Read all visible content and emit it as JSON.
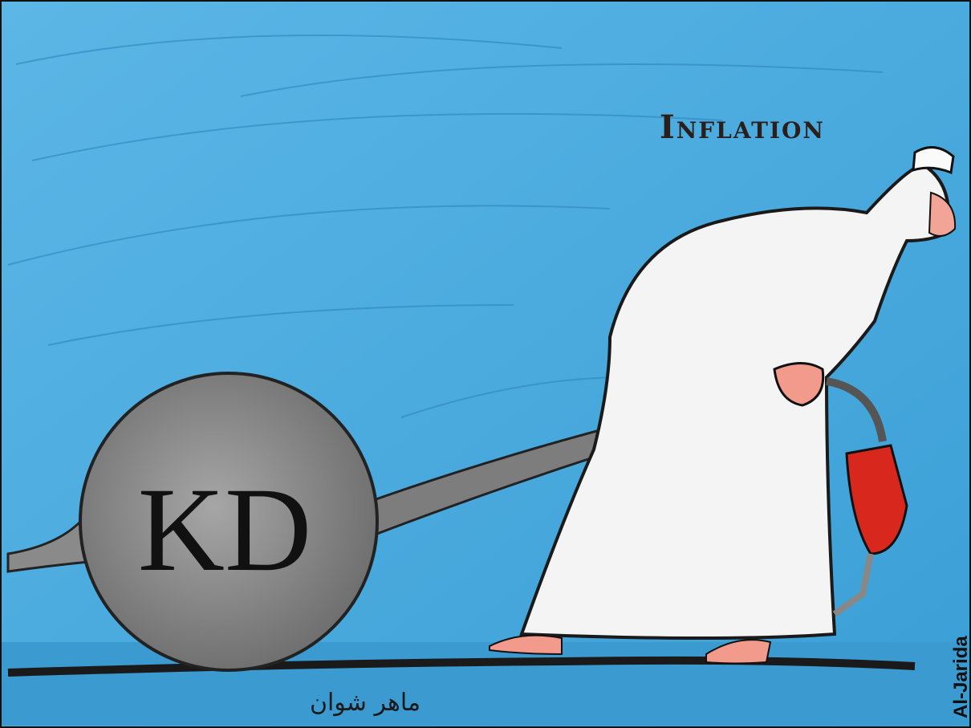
{
  "title": "Inflation",
  "ball_label": "KD",
  "signature": "ماهر شوان",
  "credit": "Al-Jarida"
}
